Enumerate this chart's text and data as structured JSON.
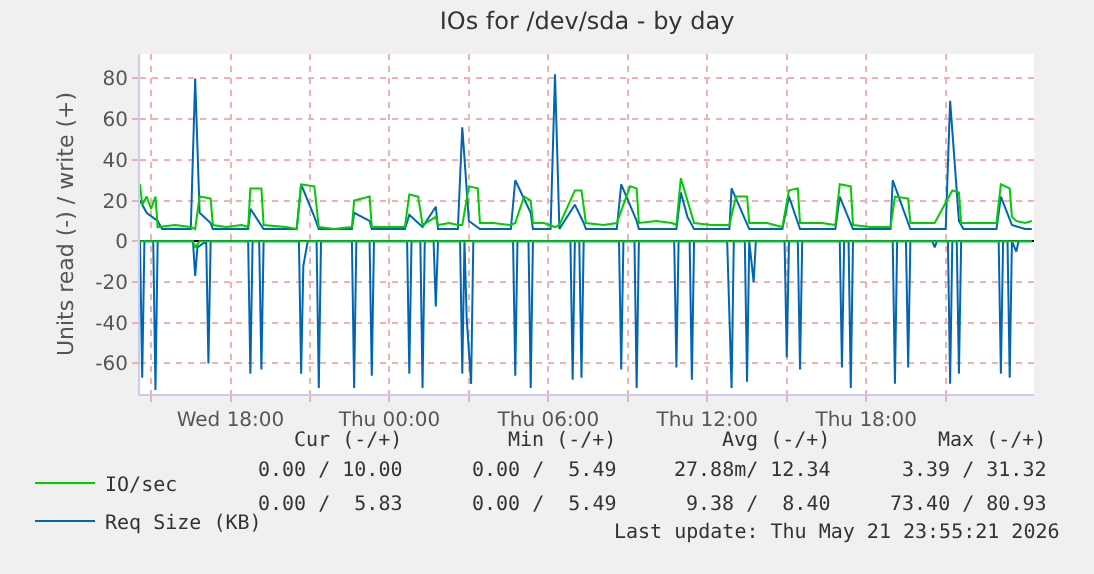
{
  "chart_data": {
    "type": "line",
    "title": "IOs for /dev/sda - by day",
    "ylabel": "Units read (-) / write (+)",
    "xlim": [
      "2026-05-20T14:35",
      "2026-05-22T00:20"
    ],
    "xticks": [
      {
        "value": "2026-05-20T15:00",
        "label": null
      },
      {
        "value": "2026-05-20T18:00",
        "label": "Wed 18:00"
      },
      {
        "value": "2026-05-20T21:00",
        "label": null
      },
      {
        "value": "2026-05-21T00:00",
        "label": "Thu 00:00"
      },
      {
        "value": "2026-05-21T03:00",
        "label": null
      },
      {
        "value": "2026-05-21T06:00",
        "label": "Thu 06:00"
      },
      {
        "value": "2026-05-21T09:00",
        "label": null
      },
      {
        "value": "2026-05-21T12:00",
        "label": "Thu 12:00"
      },
      {
        "value": "2026-05-21T15:00",
        "label": null
      },
      {
        "value": "2026-05-21T18:00",
        "label": "Thu 18:00"
      },
      {
        "value": "2026-05-21T21:00",
        "label": null
      }
    ],
    "ylim": [
      -75,
      92
    ],
    "yticks": [
      -60,
      -40,
      -20,
      0,
      20,
      40,
      60,
      80
    ],
    "grid": true,
    "legend": "bottom left",
    "marker": "none",
    "line_style": "solid",
    "series": [
      {
        "name": "IO/sec",
        "color": "#00cc00",
        "x": [
          "2026-05-20T14:35",
          "2026-05-20T14:40",
          "2026-05-20T14:50",
          "2026-05-20T15:00",
          "2026-05-20T15:10",
          "2026-05-20T15:15",
          "2026-05-20T15:55",
          "2026-05-20T16:30",
          "2026-05-20T16:40",
          "2026-05-20T16:50",
          "2026-05-20T17:15",
          "2026-05-20T17:20",
          "2026-05-20T17:50",
          "2026-05-20T18:25",
          "2026-05-20T18:40",
          "2026-05-20T18:45",
          "2026-05-20T19:10",
          "2026-05-20T19:15",
          "2026-05-20T20:05",
          "2026-05-20T20:30",
          "2026-05-20T20:40",
          "2026-05-20T21:10",
          "2026-05-20T21:20",
          "2026-05-20T21:55",
          "2026-05-20T22:35",
          "2026-05-20T22:40",
          "2026-05-20T23:15",
          "2026-05-20T23:20",
          "2026-05-20T23:50",
          "2026-05-21T00:35",
          "2026-05-21T00:45",
          "2026-05-21T01:05",
          "2026-05-21T01:15",
          "2026-05-21T01:45",
          "2026-05-21T01:50",
          "2026-05-21T02:15",
          "2026-05-21T02:35",
          "2026-05-21T02:45",
          "2026-05-21T03:00",
          "2026-05-21T03:20",
          "2026-05-21T03:25",
          "2026-05-21T03:55",
          "2026-05-21T04:35",
          "2026-05-21T04:45",
          "2026-05-21T05:05",
          "2026-05-21T05:20",
          "2026-05-21T05:25",
          "2026-05-21T05:50",
          "2026-05-21T06:15",
          "2026-05-21T06:25",
          "2026-05-21T07:00",
          "2026-05-21T07:15",
          "2026-05-21T07:25",
          "2026-05-21T08:05",
          "2026-05-21T08:35",
          "2026-05-21T09:05",
          "2026-05-21T09:20",
          "2026-05-21T09:25",
          "2026-05-21T10:05",
          "2026-05-21T10:40",
          "2026-05-21T10:50",
          "2026-05-21T11:00",
          "2026-05-21T11:15",
          "2026-05-21T11:30",
          "2026-05-21T12:10",
          "2026-05-21T12:50",
          "2026-05-21T13:05",
          "2026-05-21T13:30",
          "2026-05-21T13:35",
          "2026-05-21T14:15",
          "2026-05-21T14:50",
          "2026-05-21T15:05",
          "2026-05-21T15:25",
          "2026-05-21T15:30",
          "2026-05-21T16:20",
          "2026-05-21T16:50",
          "2026-05-21T17:00",
          "2026-05-21T17:25",
          "2026-05-21T17:30",
          "2026-05-21T18:10",
          "2026-05-21T18:55",
          "2026-05-21T19:05",
          "2026-05-21T19:35",
          "2026-05-21T19:40",
          "2026-05-21T20:35",
          "2026-05-21T21:15",
          "2026-05-21T21:30",
          "2026-05-21T21:35",
          "2026-05-21T22:20",
          "2026-05-21T22:55",
          "2026-05-21T23:05",
          "2026-05-21T23:25",
          "2026-05-21T23:30",
          "2026-05-21T23:40",
          "2026-05-22T00:00",
          "2026-05-22T00:15"
        ],
        "values": [
          28,
          18,
          22,
          16,
          22,
          7,
          8,
          7,
          6,
          22,
          21,
          8,
          7,
          8,
          7,
          26,
          26,
          8,
          7,
          6,
          28,
          27,
          7,
          6,
          7,
          20,
          22,
          7,
          7,
          7,
          23,
          22,
          8,
          12,
          8,
          9,
          8,
          8,
          27,
          26,
          9,
          9,
          8,
          9,
          22,
          20,
          9,
          9,
          7,
          8,
          25,
          25,
          9,
          8,
          9,
          27,
          26,
          9,
          10,
          9,
          8,
          31,
          20,
          9,
          8,
          8,
          22,
          22,
          9,
          9,
          7,
          25,
          26,
          9,
          9,
          8,
          28,
          27,
          8,
          7,
          7,
          22,
          21,
          9,
          9,
          25,
          24,
          9,
          9,
          9,
          28,
          26,
          12,
          10,
          9,
          10
        ]
      },
      {
        "color": "#00cc00",
        "x": [
          "2026-05-20T14:35",
          "2026-05-20T16:35",
          "2026-05-20T16:40",
          "2026-05-20T16:50",
          "2026-05-22T00:15"
        ],
        "values": [
          0,
          0,
          -3,
          0,
          0
        ]
      },
      {
        "name": "Req Size (KB)",
        "color": "#0066b3",
        "x": [
          "2026-05-20T14:35",
          "2026-05-20T14:50",
          "2026-05-20T15:15",
          "2026-05-20T15:25",
          "2026-05-20T16:30",
          "2026-05-20T16:40",
          "2026-05-20T16:50",
          "2026-05-20T17:15",
          "2026-05-20T17:20",
          "2026-05-20T18:40",
          "2026-05-20T18:45",
          "2026-05-20T19:15",
          "2026-05-20T20:30",
          "2026-05-20T20:40",
          "2026-05-20T21:10",
          "2026-05-20T21:20",
          "2026-05-20T22:35",
          "2026-05-20T22:40",
          "2026-05-20T23:15",
          "2026-05-20T23:20",
          "2026-05-21T00:35",
          "2026-05-21T00:45",
          "2026-05-21T01:15",
          "2026-05-21T01:45",
          "2026-05-21T01:50",
          "2026-05-21T02:35",
          "2026-05-21T02:45",
          "2026-05-21T03:00",
          "2026-05-21T03:25",
          "2026-05-21T04:35",
          "2026-05-21T04:45",
          "2026-05-21T05:20",
          "2026-05-21T05:25",
          "2026-05-21T06:05",
          "2026-05-21T06:15",
          "2026-05-21T06:25",
          "2026-05-21T07:00",
          "2026-05-21T07:20",
          "2026-05-21T07:25",
          "2026-05-21T08:35",
          "2026-05-21T08:45",
          "2026-05-21T09:20",
          "2026-05-21T09:25",
          "2026-05-21T10:50",
          "2026-05-21T11:00",
          "2026-05-21T11:15",
          "2026-05-21T11:30",
          "2026-05-21T12:50",
          "2026-05-21T12:55",
          "2026-05-21T13:35",
          "2026-05-21T14:50",
          "2026-05-21T15:05",
          "2026-05-21T15:30",
          "2026-05-21T16:50",
          "2026-05-21T17:00",
          "2026-05-21T17:30",
          "2026-05-21T18:55",
          "2026-05-21T19:00",
          "2026-05-21T19:40",
          "2026-05-21T21:00",
          "2026-05-21T21:10",
          "2026-05-21T21:30",
          "2026-05-21T21:40",
          "2026-05-21T22:55",
          "2026-05-21T23:05",
          "2026-05-21T23:30",
          "2026-05-22T00:00",
          "2026-05-22T00:15"
        ],
        "values": [
          20,
          14,
          10,
          6,
          6,
          80,
          14,
          9,
          6,
          6,
          16,
          6,
          6,
          28,
          12,
          6,
          6,
          14,
          10,
          6,
          6,
          13,
          7,
          17,
          6,
          6,
          56,
          10,
          6,
          6,
          30,
          14,
          6,
          6,
          82,
          6,
          18,
          9,
          6,
          6,
          28,
          10,
          6,
          6,
          24,
          12,
          6,
          6,
          26,
          6,
          6,
          22,
          6,
          6,
          22,
          6,
          6,
          30,
          6,
          6,
          69,
          10,
          6,
          6,
          22,
          8,
          6,
          6
        ]
      },
      {
        "color": "#0066b3",
        "x": [
          "2026-05-20T14:35",
          "2026-05-20T14:40",
          "2026-05-20T14:45",
          "2026-05-20T15:05",
          "2026-05-20T15:10",
          "2026-05-20T15:15",
          "2026-05-20T16:35",
          "2026-05-20T16:40",
          "2026-05-20T16:45",
          "2026-05-20T17:05",
          "2026-05-20T17:10",
          "2026-05-20T17:15",
          "2026-05-20T18:40",
          "2026-05-20T18:45",
          "2026-05-20T18:50",
          "2026-05-20T19:05",
          "2026-05-20T19:10",
          "2026-05-20T19:15",
          "2026-05-20T20:35",
          "2026-05-20T20:40",
          "2026-05-20T20:45",
          "2026-05-20T20:55",
          "2026-05-20T21:15",
          "2026-05-20T21:20",
          "2026-05-20T21:25",
          "2026-05-20T22:35",
          "2026-05-20T22:40",
          "2026-05-20T22:45",
          "2026-05-20T23:15",
          "2026-05-20T23:20",
          "2026-05-20T23:25",
          "2026-05-21T00:40",
          "2026-05-21T00:45",
          "2026-05-21T00:50",
          "2026-05-21T01:10",
          "2026-05-21T01:15",
          "2026-05-21T01:20",
          "2026-05-21T01:40",
          "2026-05-21T01:45",
          "2026-05-21T01:50",
          "2026-05-21T02:40",
          "2026-05-21T02:45",
          "2026-05-21T02:50",
          "2026-05-21T02:55",
          "2026-05-21T03:05",
          "2026-05-21T03:10",
          "2026-05-21T04:40",
          "2026-05-21T04:45",
          "2026-05-21T04:50",
          "2026-05-21T05:15",
          "2026-05-21T05:20",
          "2026-05-21T05:25",
          "2026-05-21T06:50",
          "2026-05-21T06:55",
          "2026-05-21T07:00",
          "2026-05-21T07:10",
          "2026-05-21T07:15",
          "2026-05-21T07:20",
          "2026-05-21T08:40",
          "2026-05-21T08:45",
          "2026-05-21T08:50",
          "2026-05-21T09:15",
          "2026-05-21T09:20",
          "2026-05-21T09:25",
          "2026-05-21T10:45",
          "2026-05-21T10:50",
          "2026-05-21T10:55",
          "2026-05-21T11:20",
          "2026-05-21T11:25",
          "2026-05-21T11:30",
          "2026-05-21T12:45",
          "2026-05-21T12:55",
          "2026-05-21T13:00",
          "2026-05-21T13:25",
          "2026-05-21T13:30",
          "2026-05-21T13:35",
          "2026-05-21T13:45",
          "2026-05-21T13:50",
          "2026-05-21T14:55",
          "2026-05-21T15:00",
          "2026-05-21T15:05",
          "2026-05-21T15:25",
          "2026-05-21T15:30",
          "2026-05-21T15:35",
          "2026-05-21T17:00",
          "2026-05-21T17:05",
          "2026-05-21T17:10",
          "2026-05-21T17:20",
          "2026-05-21T17:25",
          "2026-05-21T17:30",
          "2026-05-21T19:00",
          "2026-05-21T19:05",
          "2026-05-21T19:10",
          "2026-05-21T19:30",
          "2026-05-21T19:35",
          "2026-05-21T19:40",
          "2026-05-21T20:30",
          "2026-05-21T20:35",
          "2026-05-21T20:40",
          "2026-05-21T21:05",
          "2026-05-21T21:10",
          "2026-05-21T21:15",
          "2026-05-21T21:25",
          "2026-05-21T21:30",
          "2026-05-21T21:35",
          "2026-05-21T23:00",
          "2026-05-21T23:05",
          "2026-05-21T23:10",
          "2026-05-21T23:20",
          "2026-05-21T23:25",
          "2026-05-21T23:30",
          "2026-05-21T23:40",
          "2026-05-21T23:45",
          "2026-05-22T00:15"
        ],
        "values": [
          0,
          -67,
          0,
          0,
          -73,
          0,
          0,
          -17,
          -3,
          0,
          -60,
          0,
          0,
          -65,
          0,
          0,
          -63,
          0,
          0,
          -65,
          -12,
          0,
          0,
          -72,
          0,
          0,
          -72,
          0,
          0,
          -66,
          0,
          0,
          -65,
          0,
          0,
          -72,
          0,
          0,
          -32,
          0,
          0,
          -65,
          0,
          -38,
          -70,
          0,
          0,
          -66,
          0,
          0,
          -72,
          0,
          0,
          -68,
          0,
          0,
          -67,
          0,
          0,
          -63,
          0,
          0,
          -72,
          0,
          0,
          -62,
          0,
          0,
          -68,
          0,
          0,
          -72,
          0,
          0,
          -69,
          0,
          -20,
          0,
          0,
          -57,
          0,
          0,
          -63,
          0,
          0,
          -62,
          0,
          0,
          -72,
          0,
          0,
          -70,
          0,
          0,
          -62,
          0,
          0,
          -3,
          0,
          0,
          -70,
          0,
          0,
          -65,
          0,
          0,
          -65,
          0,
          0,
          -67,
          0,
          -5,
          0,
          0
        ]
      }
    ],
    "annotations": [
      "Cur (-/+)",
      "Min (-/+)",
      "Avg (-/+)",
      "Max (-/+)",
      "0.00 / 10.00",
      "0.00 /  5.49",
      "27.88m/ 12.34",
      "3.39 / 31.32",
      "0.00 /  5.83",
      "0.00 /  5.49",
      "9.38 /  8.40",
      "73.40 / 80.93",
      "Last update: Thu May 21 23:55:21 2026"
    ]
  }
}
